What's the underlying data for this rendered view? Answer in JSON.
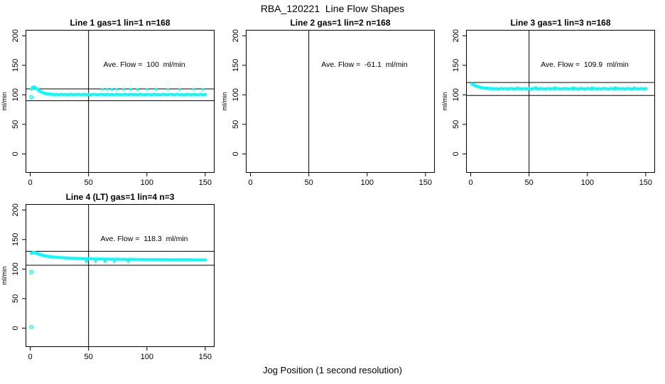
{
  "chart_data": {
    "type": "scatter",
    "title": "RBA_120221  Line Flow Shapes",
    "xlabel": "Jog Position (1 second resolution)",
    "point_color": "#00FFFF",
    "line_color": "#000000",
    "background_color": "#FFFFFF",
    "legend": "none",
    "grid": false,
    "axes": {
      "ylabel": "ml/min",
      "x_ticks": [
        0,
        50,
        100,
        150
      ],
      "y_ticks": [
        0,
        50,
        100,
        150,
        200
      ],
      "xlim": [
        -4,
        158
      ],
      "ylim": [
        -32,
        210
      ]
    },
    "points_x": [
      1,
      2,
      3,
      4,
      5,
      6,
      7,
      8,
      9,
      10,
      11,
      12,
      13,
      14,
      15,
      16,
      17,
      18,
      19,
      20,
      22,
      24,
      26,
      28,
      30,
      32,
      34,
      36,
      38,
      40,
      42,
      44,
      46,
      48,
      50,
      52,
      54,
      56,
      58,
      60,
      62,
      64,
      66,
      68,
      70,
      72,
      74,
      76,
      78,
      80,
      82,
      84,
      86,
      88,
      90,
      92,
      94,
      96,
      98,
      100,
      102,
      104,
      106,
      108,
      110,
      112,
      114,
      116,
      118,
      120,
      122,
      124,
      126,
      128,
      130,
      132,
      134,
      136,
      138,
      140,
      142,
      144,
      146,
      148,
      150
    ],
    "panels": [
      {
        "title": "Line 1 gas=1 lin=1 n=168",
        "annotation": "Ave. Flow =  100  ml/min",
        "ave_flow_ml_min": 100,
        "n": 168,
        "hlines": [
          110,
          90
        ],
        "vline": 50,
        "y": [
          110.0,
          112.3,
          113.5,
          112.6,
          111.2,
          109.6,
          108.0,
          106.6,
          105.4,
          104.4,
          103.6,
          102.9,
          102.4,
          101.9,
          101.6,
          101.3,
          101.1,
          100.9,
          100.8,
          100.7,
          100.6,
          100.2,
          100.9,
          100.4,
          100.7,
          100.1,
          101.0,
          100.5,
          100.3,
          100.8,
          100.6,
          100.2,
          100.9,
          100.4,
          100.7,
          100.1,
          101.0,
          100.5,
          100.3,
          100.8,
          100.6,
          100.2,
          100.9,
          100.4,
          100.7,
          100.1,
          101.0,
          100.5,
          100.3,
          100.8,
          100.6,
          100.2,
          100.9,
          100.4,
          100.7,
          100.1,
          101.0,
          100.5,
          100.3,
          100.8,
          100.6,
          100.2,
          100.9,
          100.4,
          100.7,
          100.1,
          101.0,
          100.5,
          100.3,
          100.8,
          100.6,
          100.2,
          100.9,
          100.4,
          100.7,
          100.1,
          101.0,
          100.5,
          100.3,
          100.8,
          100.6,
          100.2,
          100.9,
          100.4,
          100.7
        ],
        "extra_points": [
          [
            62,
            109.3
          ],
          [
            66,
            109.6
          ],
          [
            70,
            109.2
          ],
          [
            74,
            109.5
          ],
          [
            80,
            109.4
          ],
          [
            86,
            109.6
          ],
          [
            92,
            109.3
          ],
          [
            100,
            109.5
          ],
          [
            108,
            109.4
          ],
          [
            118,
            109.6
          ],
          [
            128,
            109.3
          ],
          [
            140,
            109.5
          ],
          [
            148,
            109.4
          ]
        ],
        "outliers": [
          [
            1,
            96
          ]
        ]
      },
      {
        "title": "Line 2 gas=1 lin=2 n=168",
        "annotation": "Ave. Flow =  -61.1  ml/min",
        "ave_flow_ml_min": -61.1,
        "n": 168,
        "hlines": [],
        "vline": 50,
        "y": [],
        "extra_points": [],
        "outliers": []
      },
      {
        "title": "Line 3 gas=1 lin=3 n=168",
        "annotation": "Ave. Flow =  109.9  ml/min",
        "ave_flow_ml_min": 109.9,
        "n": 168,
        "hlines": [
          120.9,
          98.9
        ],
        "vline": 50,
        "y": [
          118.5,
          117.4,
          116.4,
          115.5,
          114.7,
          114.0,
          113.4,
          112.9,
          112.4,
          112.0,
          111.7,
          111.4,
          111.2,
          111.0,
          110.9,
          110.8,
          110.7,
          110.6,
          110.5,
          110.5,
          110.5,
          110.1,
          110.8,
          110.3,
          110.6,
          110.0,
          110.9,
          110.4,
          110.2,
          110.7,
          110.5,
          110.1,
          110.8,
          110.3,
          110.6,
          110.0,
          110.9,
          110.4,
          110.2,
          110.7,
          110.5,
          110.1,
          110.8,
          110.3,
          110.6,
          110.0,
          110.9,
          110.4,
          110.2,
          110.7,
          110.5,
          110.1,
          110.8,
          110.3,
          110.6,
          110.0,
          110.9,
          110.4,
          110.2,
          110.7,
          110.5,
          110.1,
          110.8,
          110.3,
          110.6,
          110.0,
          110.9,
          110.4,
          110.2,
          110.7,
          110.5,
          110.1,
          110.8,
          110.3,
          110.6,
          110.0,
          110.9,
          110.4,
          110.2,
          110.7,
          110.5,
          110.1,
          110.8,
          110.3,
          110.6
        ],
        "extra_points": [
          [
            40,
            112.3
          ],
          [
            56,
            112.5
          ],
          [
            72,
            112.2
          ],
          [
            88,
            112.4
          ],
          [
            104,
            112.3
          ],
          [
            124,
            112.5
          ],
          [
            140,
            112.2
          ]
        ],
        "outliers": []
      },
      {
        "title": "Line 4 (LT) gas=1 lin=4 n=3",
        "annotation": "Ave. Flow =  118.3  ml/min",
        "ave_flow_ml_min": 118.3,
        "n": 3,
        "hlines": [
          130.1,
          106.5
        ],
        "vline": 50,
        "y": [
          126.5,
          127.8,
          128.3,
          128.0,
          127.3,
          126.5,
          125.7,
          125.0,
          124.3,
          123.7,
          123.2,
          122.7,
          122.3,
          121.9,
          121.6,
          121.3,
          121.0,
          120.8,
          120.6,
          120.4,
          120.1,
          119.8,
          119.5,
          119.2,
          119.0,
          118.8,
          118.6,
          118.4,
          118.2,
          118.1,
          117.9,
          117.8,
          117.7,
          117.6,
          117.5,
          117.4,
          117.3,
          117.2,
          117.1,
          117.0,
          117.0,
          116.9,
          116.9,
          116.8,
          116.8,
          116.7,
          116.7,
          116.6,
          116.6,
          116.5,
          116.5,
          116.4,
          116.4,
          116.4,
          116.3,
          116.3,
          116.3,
          116.2,
          116.2,
          116.2,
          116.1,
          116.1,
          116.1,
          116.1,
          116.0,
          116.0,
          116.0,
          116.0,
          115.9,
          115.9,
          115.9,
          115.9,
          115.9,
          115.8,
          115.8,
          115.8,
          115.8,
          115.8,
          115.8,
          115.7,
          115.7,
          115.7,
          115.7,
          115.7,
          115.7
        ],
        "extra_points": [
          [
            48,
            113.2
          ],
          [
            56,
            112.9
          ],
          [
            64,
            113.3
          ],
          [
            72,
            113.0
          ],
          [
            84,
            113.1
          ]
        ],
        "outliers": [
          [
            1,
            95
          ],
          [
            1,
            2
          ]
        ]
      }
    ]
  }
}
